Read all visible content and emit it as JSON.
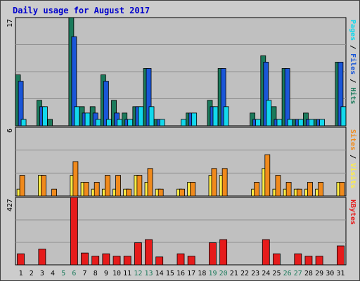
{
  "chart_data": [
    {
      "type": "bar",
      "title": "Daily usage for August 2017",
      "categories": [
        "1",
        "2",
        "3",
        "4",
        "5",
        "6",
        "7",
        "8",
        "9",
        "10",
        "11",
        "12",
        "13",
        "14",
        "15",
        "16",
        "17",
        "18",
        "19",
        "20",
        "21",
        "22",
        "23",
        "24",
        "25",
        "26",
        "27",
        "28",
        "29",
        "30",
        "31"
      ],
      "weekend_days": [
        "5",
        "6",
        "12",
        "13",
        "19",
        "20",
        "26",
        "27"
      ],
      "ymax_label": "17",
      "ylim": [
        0,
        17
      ],
      "series": [
        {
          "name": "Hits",
          "color": "#1b7a5b",
          "values": [
            8,
            0,
            4,
            1,
            0,
            17,
            3,
            3,
            8,
            4,
            2,
            3,
            9,
            1,
            0,
            0,
            2,
            0,
            4,
            9,
            0,
            0,
            2,
            11,
            3,
            9,
            1,
            2,
            1,
            0,
            10
          ]
        },
        {
          "name": "Files",
          "color": "#1a56d8",
          "values": [
            7,
            0,
            3,
            0,
            0,
            14,
            2,
            2,
            7,
            2,
            1,
            3,
            9,
            1,
            0,
            0,
            2,
            0,
            3,
            9,
            0,
            0,
            1,
            10,
            1,
            9,
            1,
            1,
            1,
            0,
            10
          ]
        },
        {
          "name": "Pages",
          "color": "#12d8ec",
          "values": [
            1,
            0,
            3,
            0,
            0,
            3,
            2,
            1,
            1,
            1,
            1,
            3,
            3,
            1,
            0,
            1,
            2,
            0,
            3,
            3,
            0,
            0,
            1,
            4,
            1,
            1,
            1,
            1,
            1,
            0,
            3
          ]
        }
      ],
      "right_label": [
        "Pages",
        "Files",
        "Hits"
      ]
    },
    {
      "type": "bar",
      "categories": [
        "1",
        "2",
        "3",
        "4",
        "5",
        "6",
        "7",
        "8",
        "9",
        "10",
        "11",
        "12",
        "13",
        "14",
        "15",
        "16",
        "17",
        "18",
        "19",
        "20",
        "21",
        "22",
        "23",
        "24",
        "25",
        "26",
        "27",
        "28",
        "29",
        "30",
        "31"
      ],
      "ymax_label": "6",
      "ylim": [
        0,
        6
      ],
      "series": [
        {
          "name": "Visits",
          "color": "#ffee44",
          "values": [
            0.6,
            0,
            1.8,
            0,
            0,
            1.8,
            1.2,
            0.6,
            0.6,
            0.6,
            0.6,
            1.8,
            1.2,
            0.6,
            0,
            0.6,
            1.2,
            0,
            1.8,
            1.8,
            0,
            0,
            0.6,
            2.4,
            0.6,
            0.6,
            0.6,
            0.6,
            0.6,
            0,
            1.2
          ]
        },
        {
          "name": "Sites",
          "color": "#f08a1c",
          "values": [
            1.8,
            0,
            1.8,
            0.6,
            0,
            3,
            1.2,
            1.2,
            1.8,
            1.8,
            0.6,
            1.8,
            2.4,
            0.6,
            0,
            0.6,
            1.2,
            0,
            2.4,
            2.4,
            0,
            0,
            1.2,
            3.6,
            1.8,
            1.2,
            0.6,
            1.2,
            1.2,
            0,
            1.2
          ]
        }
      ],
      "right_label": [
        "Sites",
        "Visits"
      ]
    },
    {
      "type": "bar",
      "categories": [
        "1",
        "2",
        "3",
        "4",
        "5",
        "6",
        "7",
        "8",
        "9",
        "10",
        "11",
        "12",
        "13",
        "14",
        "15",
        "16",
        "17",
        "18",
        "19",
        "20",
        "21",
        "22",
        "23",
        "24",
        "25",
        "26",
        "27",
        "28",
        "29",
        "30",
        "31"
      ],
      "ymax_label": "427",
      "ylim": [
        0,
        427
      ],
      "series": [
        {
          "name": "KBytes",
          "color": "#e61b1b",
          "values": [
            70,
            0,
            100,
            0,
            0,
            427,
            75,
            55,
            70,
            55,
            55,
            140,
            160,
            50,
            0,
            70,
            55,
            0,
            140,
            160,
            0,
            0,
            0,
            160,
            70,
            0,
            70,
            55,
            55,
            0,
            120
          ]
        }
      ],
      "right_label": [
        "KBytes"
      ]
    }
  ],
  "colors": {
    "plot_bg": "#c0c0c0",
    "title": "#0000cc",
    "axis_text": "#000000",
    "weekend_text": "#1b7a5b",
    "grid": "#909090"
  }
}
